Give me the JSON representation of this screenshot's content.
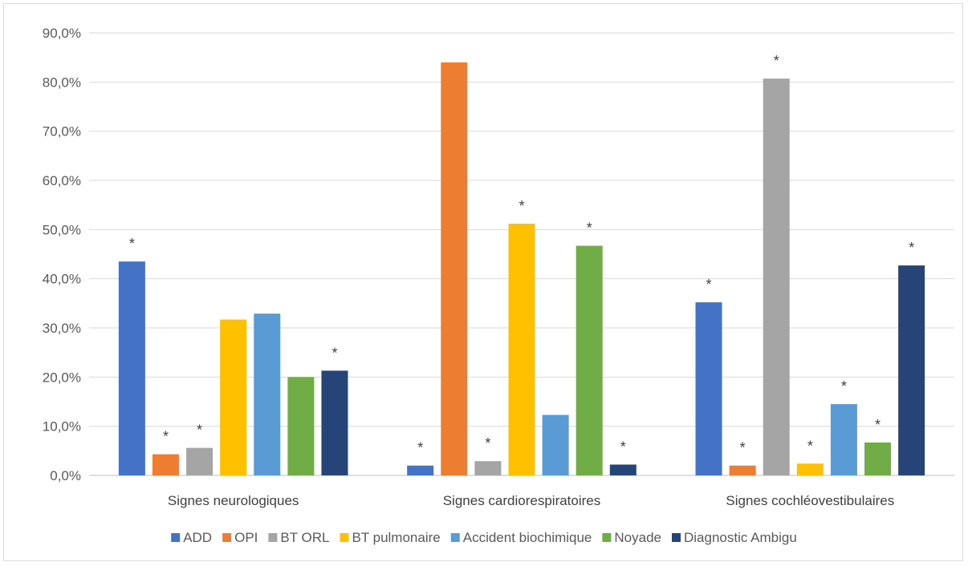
{
  "chart_data": {
    "type": "bar",
    "title": "",
    "xlabel": "",
    "ylabel": "",
    "ylim": [
      0,
      90
    ],
    "y_ticks": [
      "0,0%",
      "10,0%",
      "20,0%",
      "30,0%",
      "40,0%",
      "50,0%",
      "60,0%",
      "70,0%",
      "80,0%",
      "90,0%"
    ],
    "grid": "horizontal",
    "legend_position": "bottom",
    "categories": [
      "Signes neurologiques",
      "Signes cardiorespiratoires",
      "Signes cochléovestibulaires"
    ],
    "series": [
      {
        "name": "ADD",
        "color": "#4472c4",
        "values": [
          43.5,
          2.0,
          35.2
        ],
        "stars": [
          true,
          true,
          true
        ]
      },
      {
        "name": "OPI",
        "color": "#ed7d31",
        "values": [
          4.3,
          84.0,
          2.0
        ],
        "stars": [
          true,
          false,
          true
        ]
      },
      {
        "name": "BT ORL",
        "color": "#a5a5a5",
        "values": [
          5.6,
          2.9,
          80.7
        ],
        "stars": [
          true,
          true,
          true
        ]
      },
      {
        "name": "BT pulmonaire",
        "color": "#ffc000",
        "values": [
          31.7,
          51.2,
          2.4
        ],
        "stars": [
          false,
          true,
          true
        ]
      },
      {
        "name": "Accident biochimique",
        "color": "#5b9bd5",
        "values": [
          32.9,
          12.3,
          14.5
        ],
        "stars": [
          false,
          false,
          true
        ]
      },
      {
        "name": "Noyade",
        "color": "#70ad47",
        "values": [
          20.0,
          46.7,
          6.7
        ],
        "stars": [
          false,
          true,
          true
        ]
      },
      {
        "name": "Diagnostic Ambigu",
        "color": "#264478",
        "values": [
          21.3,
          2.2,
          42.7
        ],
        "stars": [
          true,
          true,
          true
        ]
      }
    ],
    "significance_marker": "*"
  }
}
